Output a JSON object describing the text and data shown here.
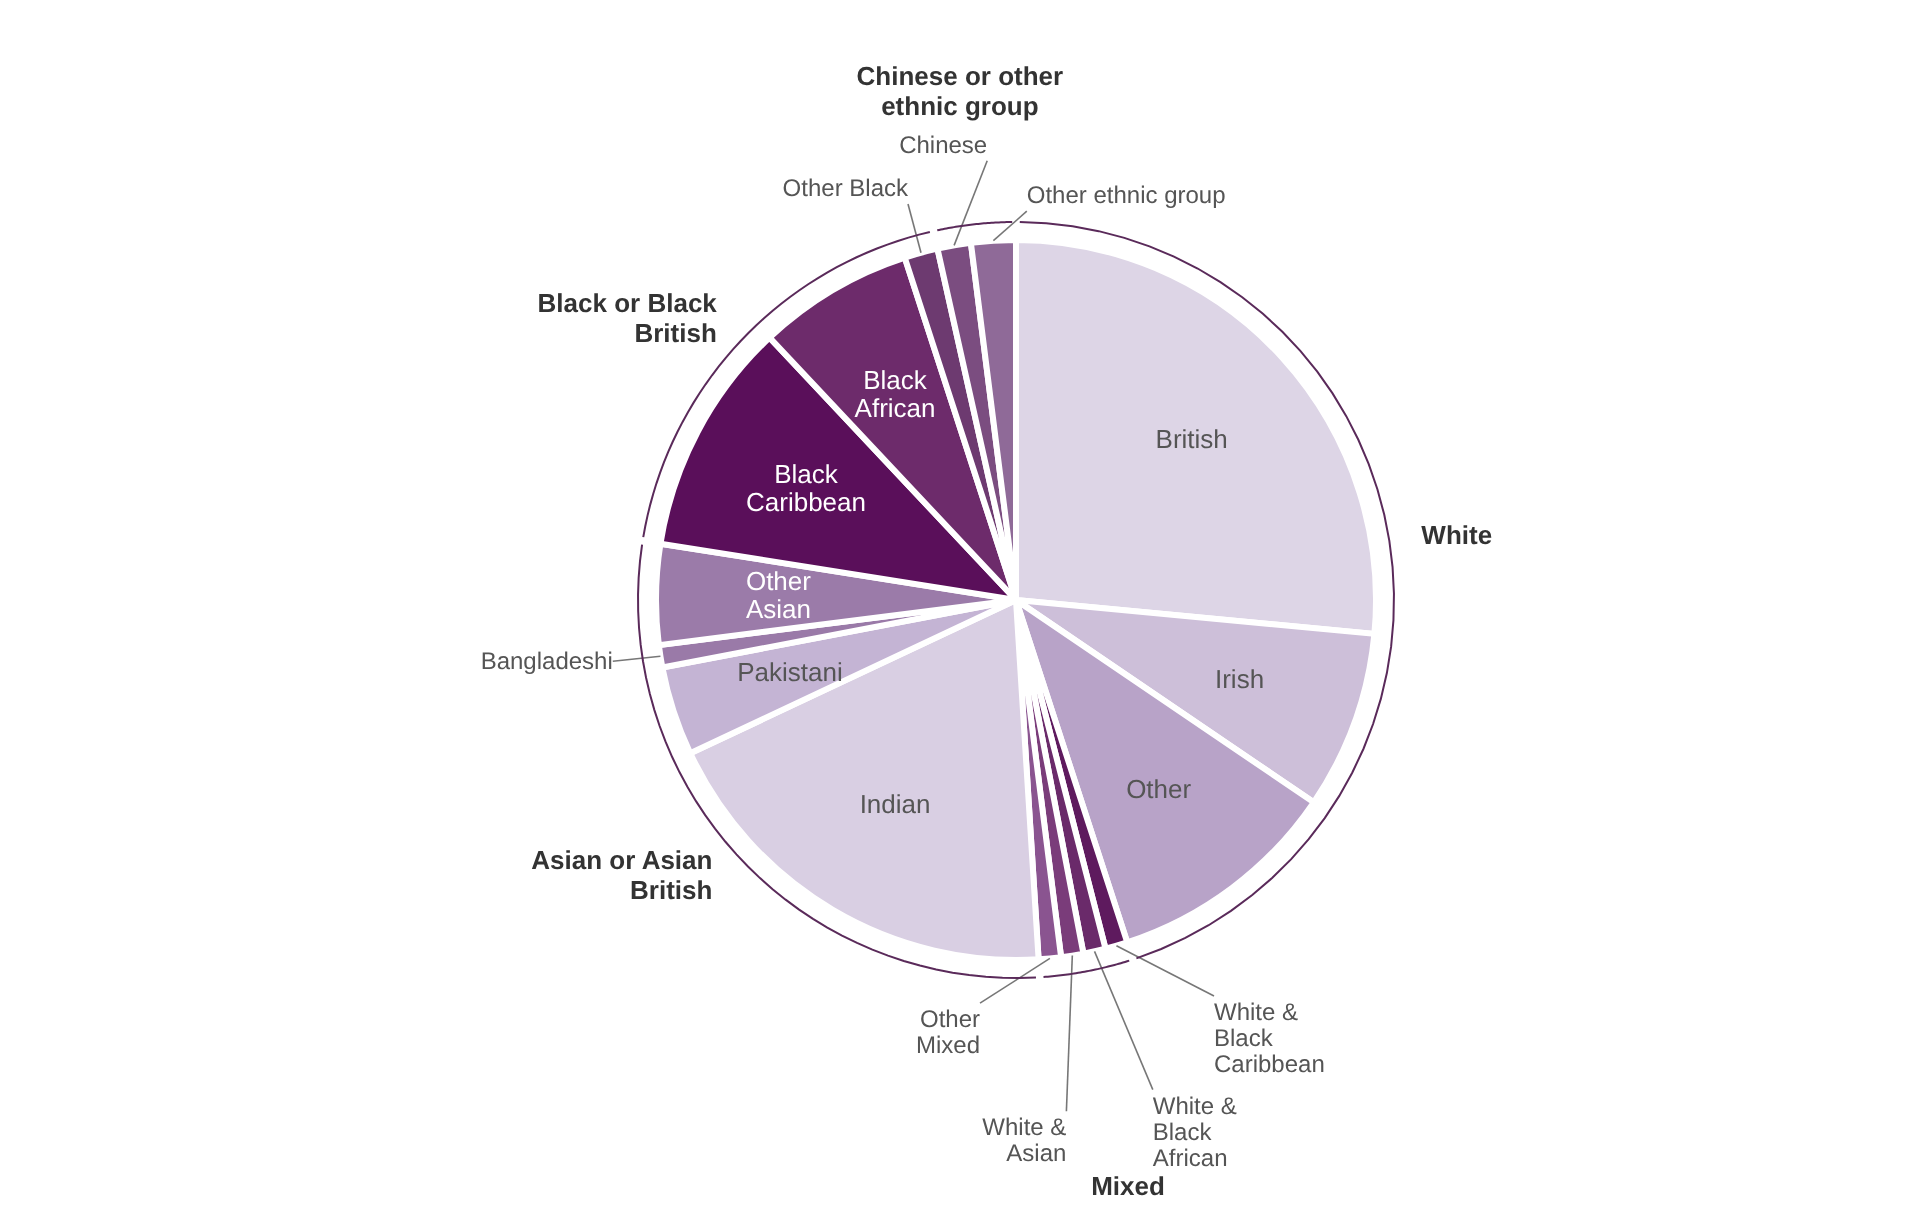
{
  "chart_data": {
    "type": "pie",
    "categories": [
      "British",
      "Irish",
      "Other",
      "White & Black Caribbean",
      "White & Black African",
      "White & Asian",
      "Other Mixed",
      "Indian",
      "Pakistani",
      "Bangladeshi",
      "Other Asian",
      "Black Caribbean",
      "Black African",
      "Other Black",
      "Chinese",
      "Other ethnic group"
    ],
    "values": [
      26.5,
      8,
      10.5,
      1,
      1,
      1,
      1,
      19,
      4,
      1,
      4.5,
      10.5,
      7,
      1.5,
      1.5,
      2
    ],
    "colors": [
      "#ddd5e6",
      "#cdbfd9",
      "#b8a3c8",
      "#5e1a5e",
      "#6a2a6a",
      "#7a3c7a",
      "#8a5490",
      "#d9cfe3",
      "#c4b4d4",
      "#9a7aa8",
      "#9b7ba9",
      "#5a0f5a",
      "#6d2b6b",
      "#6d3a70",
      "#7b4d80",
      "#8f6a98"
    ],
    "annotations": [
      "White",
      "Mixed",
      "Asian or Asian British",
      "Black or Black British",
      "Chinese or other ethnic group"
    ]
  }
}
